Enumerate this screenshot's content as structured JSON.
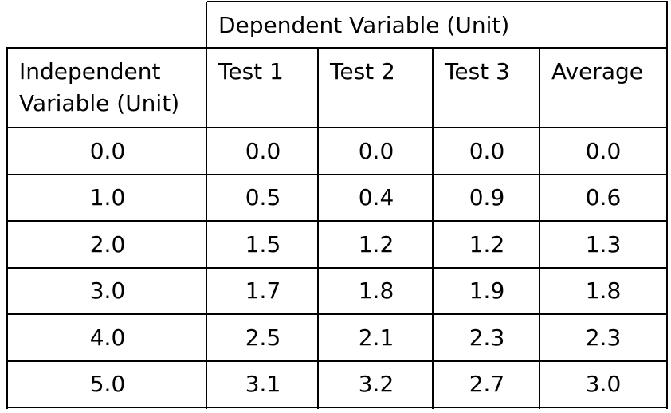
{
  "table": {
    "dependent_header": "Dependent Variable (Unit)",
    "independent_header": "Independent Variable (Unit)",
    "columns": [
      "Test 1",
      "Test 2",
      "Test 3",
      "Average"
    ],
    "rows": [
      [
        "0.0",
        "0.0",
        "0.0",
        "0.0",
        "0.0"
      ],
      [
        "1.0",
        "0.5",
        "0.4",
        "0.9",
        "0.6"
      ],
      [
        "2.0",
        "1.5",
        "1.2",
        "1.2",
        "1.3"
      ],
      [
        "3.0",
        "1.7",
        "1.8",
        "1.9",
        "1.8"
      ],
      [
        "4.0",
        "2.5",
        "2.1",
        "2.3",
        "2.3"
      ],
      [
        "5.0",
        "3.1",
        "3.2",
        "2.7",
        "3.0"
      ]
    ]
  }
}
